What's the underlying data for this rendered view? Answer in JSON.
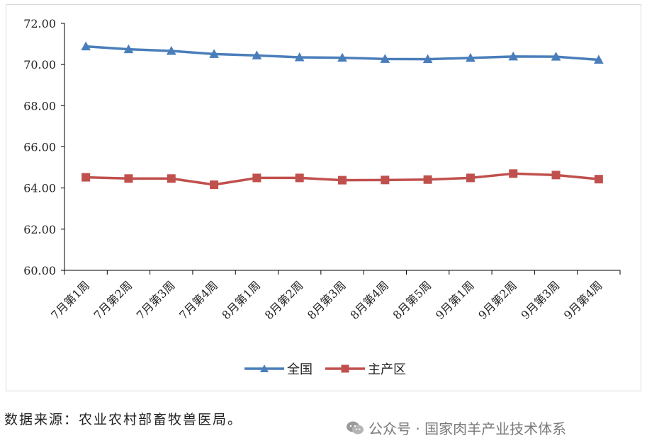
{
  "chart_data": {
    "type": "line",
    "title": "",
    "xlabel": "",
    "ylabel": "",
    "ylim": [
      60,
      72
    ],
    "yticks": [
      "60.00",
      "62.00",
      "64.00",
      "66.00",
      "68.00",
      "70.00",
      "72.00"
    ],
    "grid": false,
    "legend_position": "bottom",
    "categories": [
      "7月第1周",
      "7月第2周",
      "7月第3周",
      "7月第4周",
      "8月第1周",
      "8月第2周",
      "8月第3周",
      "8月第4周",
      "8月第5周",
      "9月第1周",
      "9月第2周",
      "9月第3周",
      "9月第4周"
    ],
    "series": [
      {
        "name": "全国",
        "color": "#4a7ebb",
        "marker": "triangle",
        "values": [
          70.88,
          70.74,
          70.66,
          70.51,
          70.44,
          70.35,
          70.33,
          70.27,
          70.26,
          70.32,
          70.39,
          70.38,
          70.23
        ]
      },
      {
        "name": "主产区",
        "color": "#c0504d",
        "marker": "square",
        "values": [
          64.52,
          64.46,
          64.46,
          64.16,
          64.49,
          64.49,
          64.38,
          64.39,
          64.41,
          64.49,
          64.7,
          64.63,
          64.43
        ]
      }
    ]
  },
  "source": "数据来源：农业农村部畜牧兽医局。",
  "watermark": "公众号 · 国家肉羊产业技术体系"
}
